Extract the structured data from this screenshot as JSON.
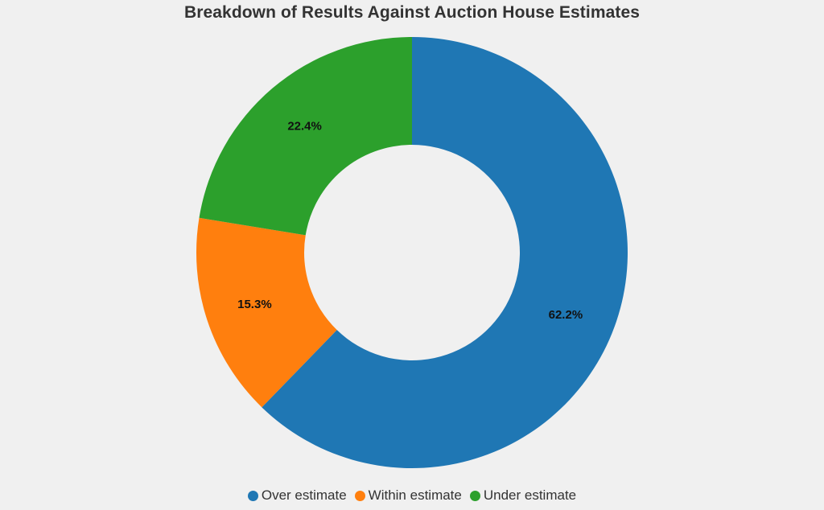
{
  "chart_data": {
    "type": "pie",
    "donut": true,
    "title": "Breakdown of Results Against Auction House Estimates",
    "categories": [
      "Over estimate",
      "Within estimate",
      "Under estimate"
    ],
    "values": [
      62.2,
      15.3,
      22.4
    ],
    "value_labels": [
      "62.2%",
      "15.3%",
      "22.4%"
    ],
    "colors": [
      "#1f77b4",
      "#ff7f0e",
      "#2ca02c"
    ],
    "start_angle": "12 o'clock",
    "direction": "clockwise",
    "legend_position": "bottom"
  }
}
